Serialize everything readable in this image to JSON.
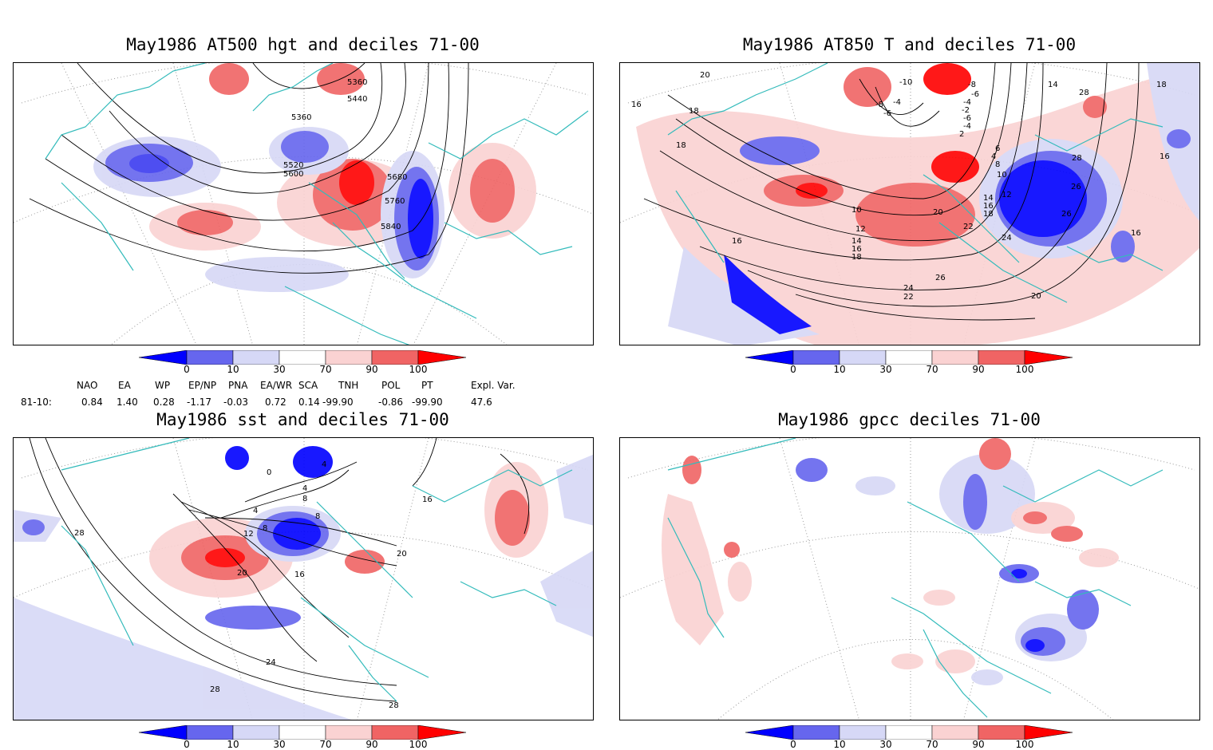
{
  "panels": [
    {
      "title": "May1986 AT500 hgt and deciles 71-00",
      "contour_labels": [
        "5360",
        "5360",
        "5440",
        "5520",
        "5600",
        "5680",
        "5760",
        "5840"
      ]
    },
    {
      "title": "May1986 AT850 T and deciles 71-00",
      "contour_labels": [
        "20",
        "16",
        "18",
        "18",
        "-10",
        "-8",
        "-6",
        "-4",
        "-2",
        "14",
        "28",
        "28",
        "26",
        "26",
        "16",
        "16",
        "10",
        "12",
        "14",
        "16",
        "18",
        "20",
        "22",
        "24",
        "26",
        "24",
        "22",
        "20",
        "14",
        "16",
        "18",
        "8",
        "10",
        "12",
        "-6",
        "-4",
        "-8",
        "-6",
        "-4",
        "2",
        "6",
        "4",
        "16",
        "18"
      ]
    },
    {
      "title": "May1986 sst and deciles 71-00",
      "contour_labels": [
        "28",
        "0",
        "4",
        "8",
        "12",
        "8",
        "16",
        "20",
        "20",
        "24",
        "28",
        "28",
        "4",
        "8",
        "16",
        "4"
      ]
    },
    {
      "title": "May1986 gpcc deciles 71-00",
      "contour_labels": []
    }
  ],
  "colorbar": {
    "labels": [
      "0",
      "10",
      "30",
      "70",
      "90",
      "100"
    ],
    "colors": {
      "dark_blue": "#0000ff",
      "mid_blue": "#6666ee",
      "light_blue": "#d6d8f6",
      "white": "#ffffff",
      "light_red": "#fad2d2",
      "mid_red": "#f06464",
      "dark_red": "#ff0000"
    }
  },
  "indices": {
    "headers": [
      "NAO",
      "EA",
      "WP",
      "EP/NP",
      "PNA",
      "EA/WR",
      "SCA",
      "TNH",
      "POL",
      "PT",
      "Expl. Var."
    ],
    "row_label": "81-10:",
    "values": [
      "0.84",
      "1.40",
      "0.28",
      "-1.17",
      "-0.03",
      "0.72",
      "0.14",
      "-99.90",
      "-0.86",
      "-99.90",
      "47.6"
    ]
  },
  "style": {
    "coast_color": "#33bbbb",
    "grid_color": "#999999"
  }
}
